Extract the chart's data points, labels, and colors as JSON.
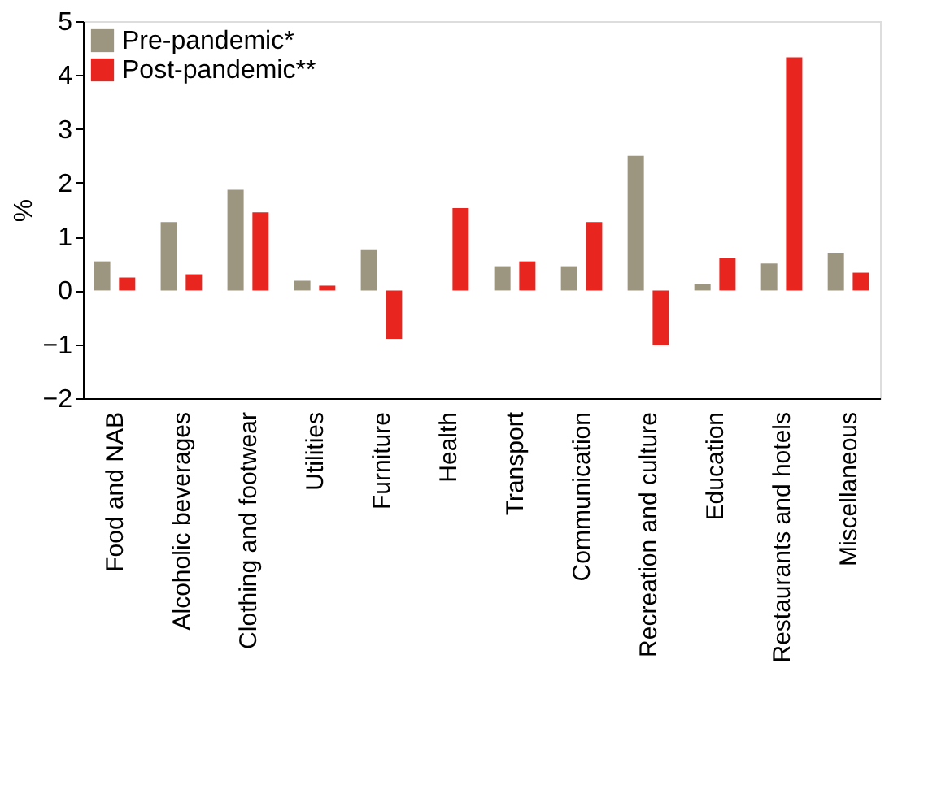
{
  "chart_data": {
    "type": "bar",
    "ylabel": "%",
    "categories": [
      "Food and NAB",
      "Alcoholic beverages",
      "Clothing and footwear",
      "Utilities",
      "Furniture",
      "Health",
      "Transport",
      "Communication",
      "Recreation and culture",
      "Education",
      "Restaurants and hotels",
      "Miscellaneous"
    ],
    "series": [
      {
        "name": "Pre-pandemic*",
        "color": "#9c9580",
        "values": [
          0.54,
          1.27,
          1.87,
          0.18,
          0.75,
          null,
          0.45,
          0.45,
          2.5,
          0.12,
          0.5,
          0.7
        ]
      },
      {
        "name": "Post-pandemic**",
        "color": "#e8251f",
        "values": [
          0.24,
          0.3,
          1.45,
          0.09,
          -0.9,
          1.53,
          0.54,
          1.27,
          -1.02,
          0.6,
          4.33,
          0.33
        ]
      }
    ],
    "ylim": [
      -2,
      5
    ],
    "yticks": [
      -2,
      -1,
      0,
      1,
      2,
      3,
      4,
      5
    ],
    "grid": false,
    "legend": "top left"
  }
}
